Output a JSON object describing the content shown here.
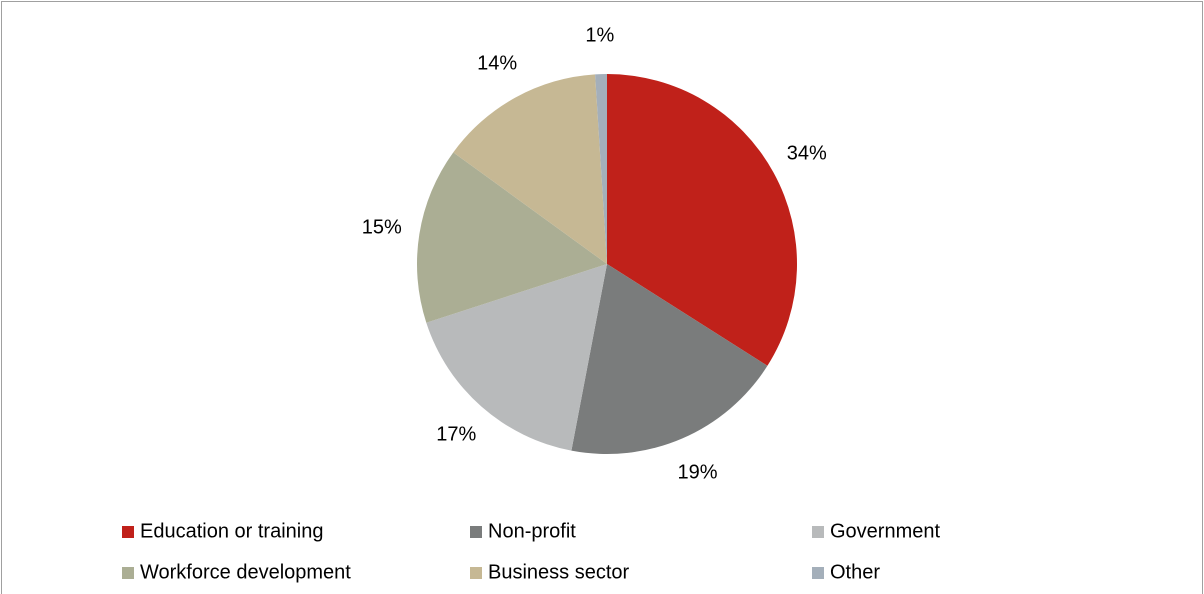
{
  "chart_data": {
    "type": "pie",
    "categories": [
      "Education or training",
      "Non-profit",
      "Government",
      "Workforce development",
      "Business sector",
      "Other"
    ],
    "values": [
      34,
      19,
      17,
      15,
      14,
      1
    ],
    "value_labels": [
      "34%",
      "19%",
      "17%",
      "15%",
      "14%",
      "1%"
    ],
    "colors": [
      "#c0211a",
      "#7a7c7c",
      "#b8babb",
      "#abae94",
      "#c6b894",
      "#a4afba"
    ]
  }
}
